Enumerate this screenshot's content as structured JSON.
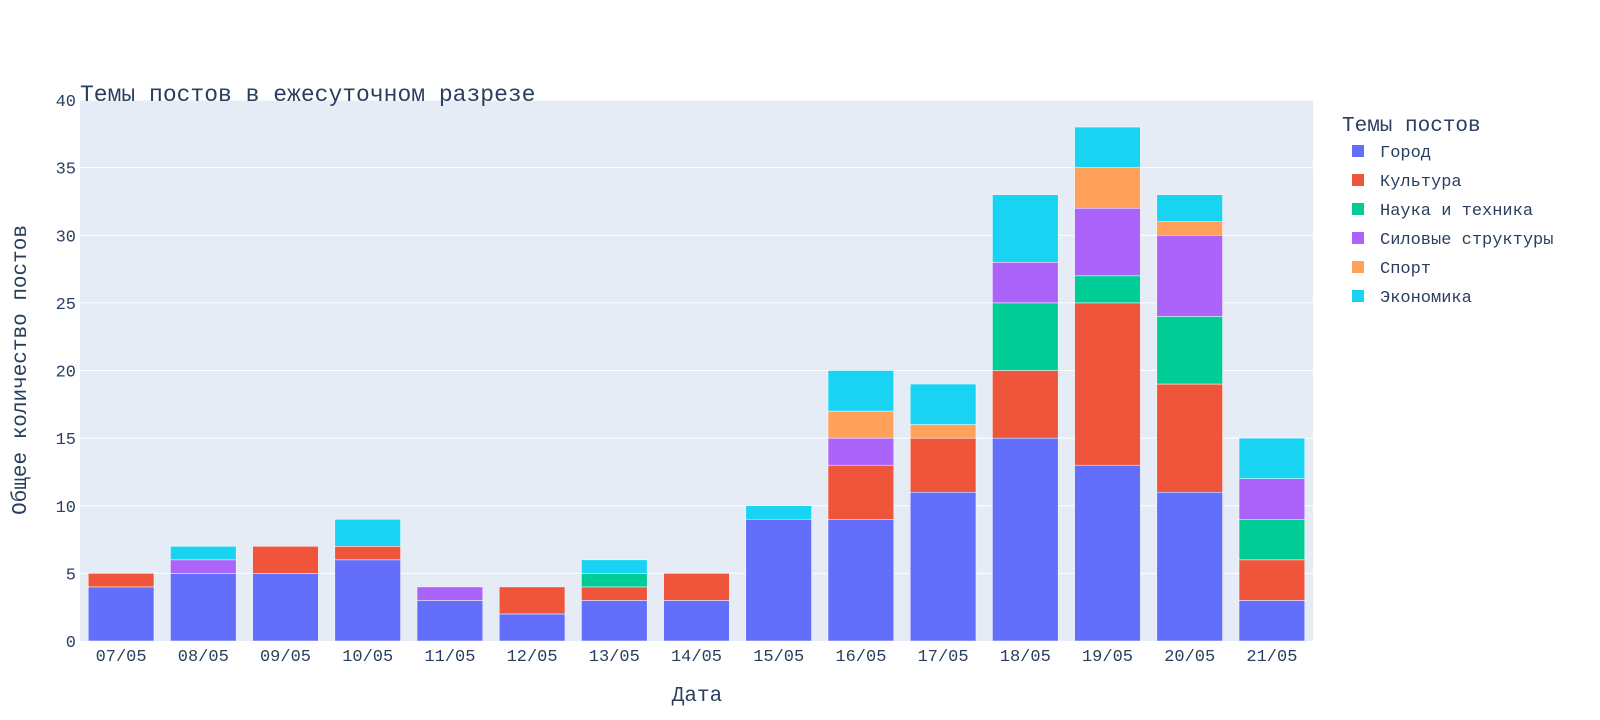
{
  "chart_data": {
    "type": "bar",
    "stacked": true,
    "title": "Темы постов в ежесуточном разрезе",
    "xlabel": "Дата",
    "ylabel": "Общее количество постов",
    "ylim": [
      0,
      40
    ],
    "yticks": [
      0,
      5,
      10,
      15,
      20,
      25,
      30,
      35,
      40
    ],
    "grid": true,
    "legend_title": "Темы постов",
    "legend_position": "right",
    "categories": [
      "07/05",
      "08/05",
      "09/05",
      "10/05",
      "11/05",
      "12/05",
      "13/05",
      "14/05",
      "15/05",
      "16/05",
      "17/05",
      "18/05",
      "19/05",
      "20/05",
      "21/05"
    ],
    "series": [
      {
        "name": "Город",
        "color": "#636efa",
        "values": [
          4,
          5,
          5,
          6,
          3,
          2,
          3,
          3,
          9,
          9,
          11,
          15,
          13,
          11,
          3
        ]
      },
      {
        "name": "Культура",
        "color": "#ef553b",
        "values": [
          1,
          0,
          2,
          1,
          0,
          2,
          1,
          2,
          0,
          4,
          4,
          5,
          12,
          8,
          3
        ]
      },
      {
        "name": "Наука и техника",
        "color": "#00cc96",
        "values": [
          0,
          0,
          0,
          0,
          0,
          0,
          1,
          0,
          0,
          0,
          0,
          5,
          2,
          5,
          3
        ]
      },
      {
        "name": "Силовые структуры",
        "color": "#ab63fa",
        "values": [
          0,
          1,
          0,
          0,
          1,
          0,
          0,
          0,
          0,
          2,
          0,
          3,
          5,
          6,
          3
        ]
      },
      {
        "name": "Спорт",
        "color": "#ffa15a",
        "values": [
          0,
          0,
          0,
          0,
          0,
          0,
          0,
          0,
          0,
          2,
          1,
          0,
          3,
          1,
          0
        ]
      },
      {
        "name": "Экономика",
        "color": "#19d3f3",
        "values": [
          0,
          1,
          0,
          2,
          0,
          0,
          1,
          0,
          1,
          3,
          3,
          5,
          3,
          2,
          3
        ]
      }
    ]
  }
}
